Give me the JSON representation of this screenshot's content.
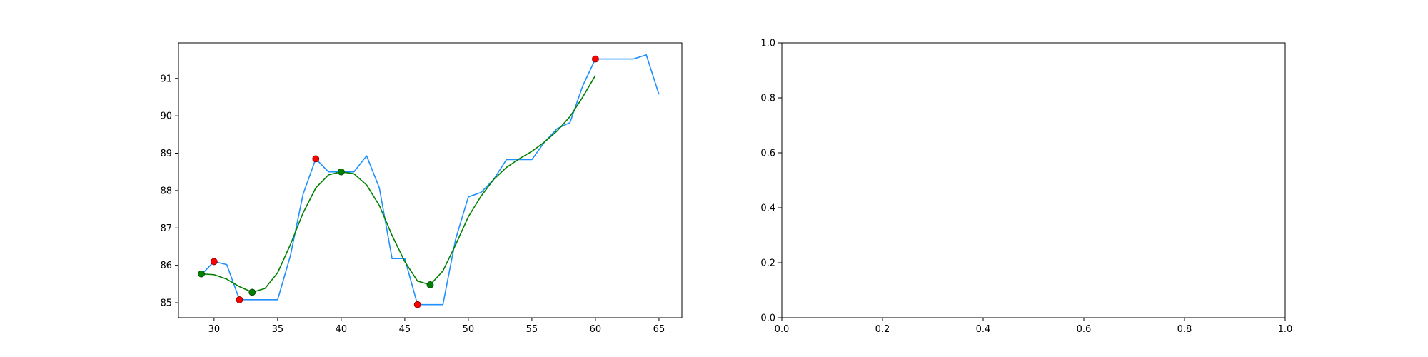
{
  "chart_data": [
    {
      "type": "line",
      "title": "",
      "xlabel": "",
      "ylabel": "",
      "xlim": [
        27.2,
        66.8
      ],
      "ylim": [
        84.6,
        91.95
      ],
      "xticks": [
        30,
        35,
        40,
        45,
        50,
        55,
        60,
        65
      ],
      "yticks": [
        85,
        86,
        87,
        88,
        89,
        90,
        91
      ],
      "grid": false,
      "series": [
        {
          "color": "#1e90ff",
          "x": [
            29,
            30,
            31,
            32,
            33,
            34,
            35,
            36,
            37,
            38,
            39,
            40,
            41,
            42,
            43,
            44,
            45,
            46,
            47,
            48,
            49,
            50,
            51,
            52,
            53,
            54,
            55,
            56,
            57,
            58,
            59,
            60,
            61,
            62,
            63,
            64,
            65
          ],
          "y": [
            85.75,
            86.1,
            86.02,
            85.08,
            85.08,
            85.08,
            85.08,
            86.25,
            87.9,
            88.85,
            88.5,
            88.5,
            88.5,
            88.93,
            88.07,
            86.18,
            86.18,
            84.95,
            84.95,
            84.95,
            86.7,
            87.83,
            87.95,
            88.3,
            88.83,
            88.83,
            88.83,
            89.3,
            89.66,
            89.82,
            90.8,
            91.52,
            91.52,
            91.52,
            91.52,
            91.63,
            90.57
          ]
        },
        {
          "color": "#008000",
          "x": [
            29,
            30,
            31,
            32,
            33,
            34,
            35,
            36,
            37,
            38,
            39,
            40,
            41,
            42,
            43,
            44,
            45,
            46,
            47,
            48,
            49,
            50,
            51,
            52,
            53,
            54,
            55,
            56,
            57,
            58,
            59,
            60
          ],
          "y": [
            85.77,
            85.75,
            85.63,
            85.43,
            85.28,
            85.38,
            85.8,
            86.55,
            87.4,
            88.07,
            88.42,
            88.5,
            88.45,
            88.15,
            87.6,
            86.8,
            86.1,
            85.58,
            85.48,
            85.85,
            86.55,
            87.3,
            87.85,
            88.3,
            88.62,
            88.85,
            89.05,
            89.3,
            89.6,
            89.98,
            90.5,
            91.08
          ]
        }
      ],
      "markers": [
        {
          "color": "#ff0000",
          "edgecolor": "#7f0000",
          "x": [
            30,
            32,
            38,
            46,
            60
          ],
          "y": [
            86.1,
            85.08,
            88.85,
            84.95,
            91.52
          ]
        },
        {
          "color": "#008000",
          "edgecolor": "#004000",
          "x": [
            29,
            33,
            40,
            47
          ],
          "y": [
            85.77,
            85.28,
            88.5,
            85.48
          ]
        }
      ]
    },
    {
      "type": "line",
      "title": "",
      "xlabel": "",
      "ylabel": "",
      "xlim": [
        0,
        1
      ],
      "ylim": [
        0,
        1
      ],
      "xticks": [
        "0.0",
        "0.2",
        "0.4",
        "0.6",
        "0.8",
        "1.0"
      ],
      "yticks": [
        "0.0",
        "0.2",
        "0.4",
        "0.6",
        "0.8",
        "1.0"
      ],
      "grid": false,
      "series": []
    }
  ]
}
